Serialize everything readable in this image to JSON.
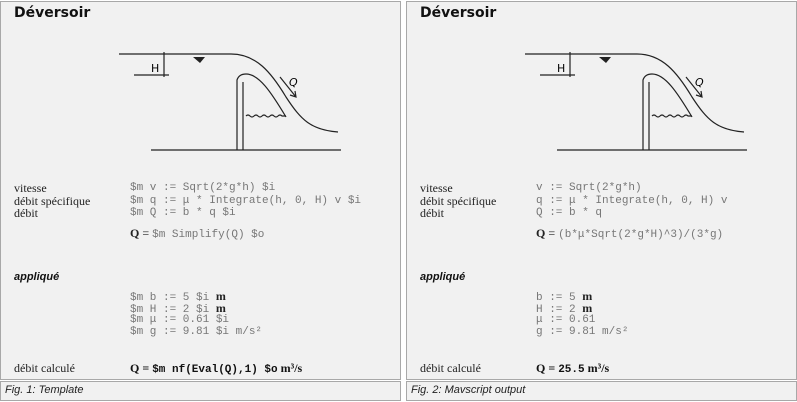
{
  "panels": [
    {
      "title": "Déversoir",
      "labels": {
        "vitesse": "vitesse",
        "debit_specifique": "débit spécifique",
        "debit": "débit",
        "applique": "appliqué",
        "debit_calcule": "débit calculé"
      },
      "lines": {
        "v": "$m v := Sqrt(2*g*h) $i",
        "q": "$m q := μ * Integrate(h, 0, H) v $i",
        "Q": "$m Q := b * q $i",
        "result_prefix": "Q",
        "result_expr": "$m Simplify(Q) $o",
        "b": "$m b := 5 $i",
        "b_unit": "m",
        "H": "$m H := 2 $i",
        "H_unit": "m",
        "mu": "$m μ := 0.61 $i",
        "g": "$m g := 9.81 $i m/s²",
        "final_prefix": "Q",
        "final_expr": "$m nf(Eval(Q),1) $o",
        "final_unit": "m³/s"
      },
      "caption": "Fig. 1: Template"
    },
    {
      "title": "Déversoir",
      "labels": {
        "vitesse": "vitesse",
        "debit_specifique": "débit spécifique",
        "debit": "débit",
        "applique": "appliqué",
        "debit_calcule": "débit calculé"
      },
      "lines": {
        "v": "v := Sqrt(2*g*h)",
        "q": "q := μ * Integrate(h, 0, H) v",
        "Q": "Q := b * q",
        "result_prefix": "Q",
        "result_expr": "(b*μ*Sqrt(2*g*H)^3)/(3*g)",
        "b": "b := 5",
        "b_unit": "m",
        "H": "H := 2",
        "H_unit": "m",
        "mu": "μ := 0.61",
        "g": "g := 9.81 m/s²",
        "final_prefix": "Q",
        "final_expr": "25.5",
        "final_unit": "m³/s"
      },
      "caption": "Fig. 2: Mavscript output"
    }
  ],
  "diagram": {
    "H_label": "H",
    "Q_label": "Q"
  }
}
